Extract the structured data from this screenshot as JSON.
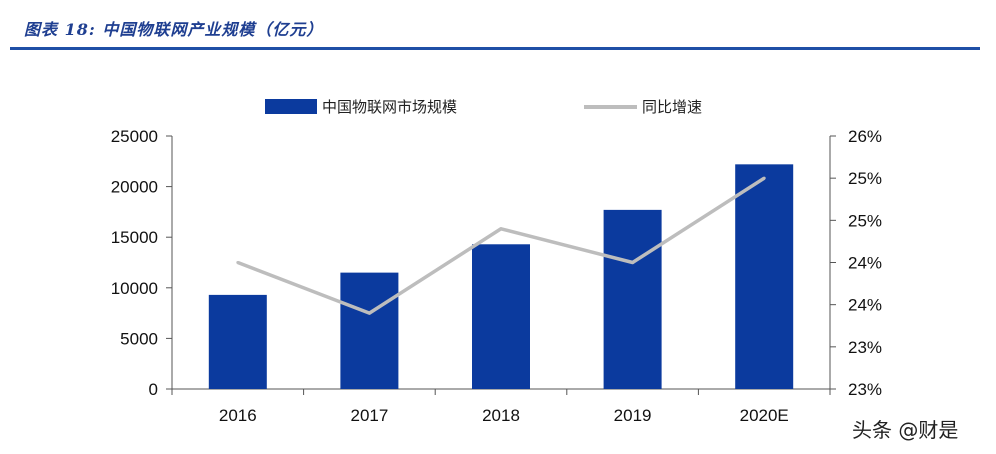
{
  "figure": {
    "title": "图表 18:  中国物联网产业规模（亿元）"
  },
  "watermark": "头条 @财是",
  "colors": {
    "bar": "#0b3a9e",
    "line": "#bdbdbd",
    "title": "#1f3f91",
    "rule": "#1f4fa6"
  },
  "chart_data": {
    "type": "bar",
    "categories": [
      "2016",
      "2017",
      "2018",
      "2019",
      "2020E"
    ],
    "series": [
      {
        "name": "中国物联网市场规模",
        "kind": "bar",
        "axis": "left",
        "values": [
          9300,
          11500,
          14300,
          17700,
          22200
        ]
      },
      {
        "name": "同比增速",
        "kind": "line",
        "axis": "right",
        "values": [
          24.0,
          23.4,
          24.4,
          24.0,
          25.0
        ]
      }
    ],
    "y_left": {
      "lim": [
        0,
        25000
      ],
      "ticks": [
        0,
        5000,
        10000,
        15000,
        20000,
        25000
      ],
      "tick_labels": [
        "0",
        "5000",
        "10000",
        "15000",
        "20000",
        "25000"
      ]
    },
    "y_right": {
      "lim": [
        22.5,
        25.5
      ],
      "ticks": [
        22.5,
        23.0,
        23.5,
        24.0,
        24.5,
        25.0,
        25.5
      ],
      "tick_labels": [
        "23%",
        "23%",
        "24%",
        "24%",
        "25%",
        "25%",
        "26%"
      ]
    },
    "grid": false,
    "legend_position": "top-center"
  }
}
